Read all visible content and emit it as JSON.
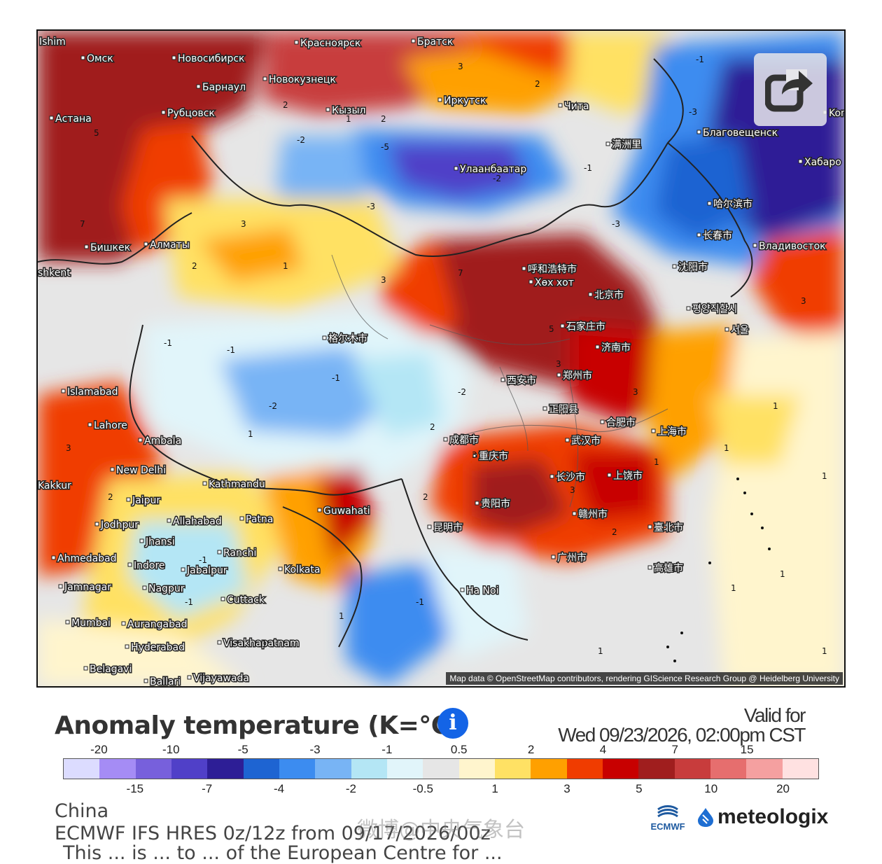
{
  "map": {
    "attribution": "Map data © OpenStreetMap contributors, rendering GIScience Research Group @ Heidelberg University",
    "cities": [
      {
        "name": "Омск"
      },
      {
        "name": "Новосибирск"
      },
      {
        "name": "Красноярск"
      },
      {
        "name": "Братск"
      },
      {
        "name": "Барнаул"
      },
      {
        "name": "Новокузнецк"
      },
      {
        "name": "Иркутск"
      },
      {
        "name": "Чита"
      },
      {
        "name": "Астана"
      },
      {
        "name": "Рубцовск"
      },
      {
        "name": "Кызыл"
      },
      {
        "name": "Благовещенск"
      },
      {
        "name": "Улаанбаатар"
      },
      {
        "name": "Хабаро"
      },
      {
        "name": "满洲里"
      },
      {
        "name": "哈尔滨市"
      },
      {
        "name": "长春市"
      },
      {
        "name": "Владивосток"
      },
      {
        "name": "沈阳市"
      },
      {
        "name": "Бишкек"
      },
      {
        "name": "Алматы"
      },
      {
        "name": "呼和浩特市"
      },
      {
        "name": "Хөх хот"
      },
      {
        "name": "北京市"
      },
      {
        "name": "평양직할시"
      },
      {
        "name": "石家庄市"
      },
      {
        "name": "서울"
      },
      {
        "name": "济南市"
      },
      {
        "name": "格尔木市"
      },
      {
        "name": "郑州市"
      },
      {
        "name": "西安市"
      },
      {
        "name": "Islamabad"
      },
      {
        "name": "正阳县"
      },
      {
        "name": "合肥市"
      },
      {
        "name": "上海市"
      },
      {
        "name": "Lahore"
      },
      {
        "name": "Ambala"
      },
      {
        "name": "成都市"
      },
      {
        "name": "武汉市"
      },
      {
        "name": "重庆市"
      },
      {
        "name": "New Delhi"
      },
      {
        "name": "长沙市"
      },
      {
        "name": "上饶市"
      },
      {
        "name": "Kathmandu"
      },
      {
        "name": "Jaipur"
      },
      {
        "name": "Guwahati"
      },
      {
        "name": "贵阳市"
      },
      {
        "name": "Jodhpur"
      },
      {
        "name": "Allahabad"
      },
      {
        "name": "Patna"
      },
      {
        "name": "赣州市"
      },
      {
        "name": "昆明市"
      },
      {
        "name": "臺北市"
      },
      {
        "name": "Jhansi"
      },
      {
        "name": "Ahmedabad"
      },
      {
        "name": "Ranchi"
      },
      {
        "name": "Indore"
      },
      {
        "name": "Jabalpur"
      },
      {
        "name": "Kolkata"
      },
      {
        "name": "广州市"
      },
      {
        "name": "Jamnagar"
      },
      {
        "name": "Nagpur"
      },
      {
        "name": "高雄市"
      },
      {
        "name": "Ha Noi"
      },
      {
        "name": "Cuttack"
      },
      {
        "name": "Mumbai"
      },
      {
        "name": "Aurangabad"
      },
      {
        "name": "Hyderabad"
      },
      {
        "name": "Visakhapatnam"
      },
      {
        "name": "Belagavi"
      },
      {
        "name": "Ballari"
      },
      {
        "name": "Vijayawada"
      },
      {
        "name": "Ishim"
      },
      {
        "name": "shkent"
      },
      {
        "name": "Komsomolsk"
      },
      {
        "name": "Kakkur"
      }
    ]
  },
  "share_icon": "share-arrow-icon",
  "legend": {
    "title": "Anomaly temperature (K=°C)",
    "info_icon": "info-icon",
    "info_glyph": "i",
    "valid_label": "Valid for",
    "valid_time": "Wed 09/23/2026, 02:00pm CST",
    "colors": [
      "#dcdcff",
      "#a58cf5",
      "#7760dc",
      "#5040c8",
      "#2d1e96",
      "#1e64d2",
      "#3c8cf0",
      "#78b4f5",
      "#b4e6f5",
      "#e1f5fa",
      "#e6e6e6",
      "#fff5cd",
      "#ffe164",
      "#ffa000",
      "#f03c00",
      "#c80000",
      "#a01e1e",
      "#c83c3c",
      "#e66e6e",
      "#f5a0a0",
      "#ffe1e1"
    ],
    "top_ticks": [
      "-20",
      "-10",
      "-5",
      "-3",
      "-1",
      "0.5",
      "2",
      "4",
      "7",
      "15"
    ],
    "bottom_ticks": [
      "-15",
      "-7",
      "-4",
      "-2",
      "-0.5",
      "1",
      "3",
      "5",
      "10",
      "20"
    ]
  },
  "footer": {
    "region": "China",
    "model": "ECMWF IFS HRES 0z/12z from 09/17/2026/00z",
    "cut_line": "This ... is ... to ... of the European Centre for ...",
    "watermark": "微博@中央气象台",
    "ecmwf_label": "ECMWF",
    "brand": "meteologix"
  }
}
